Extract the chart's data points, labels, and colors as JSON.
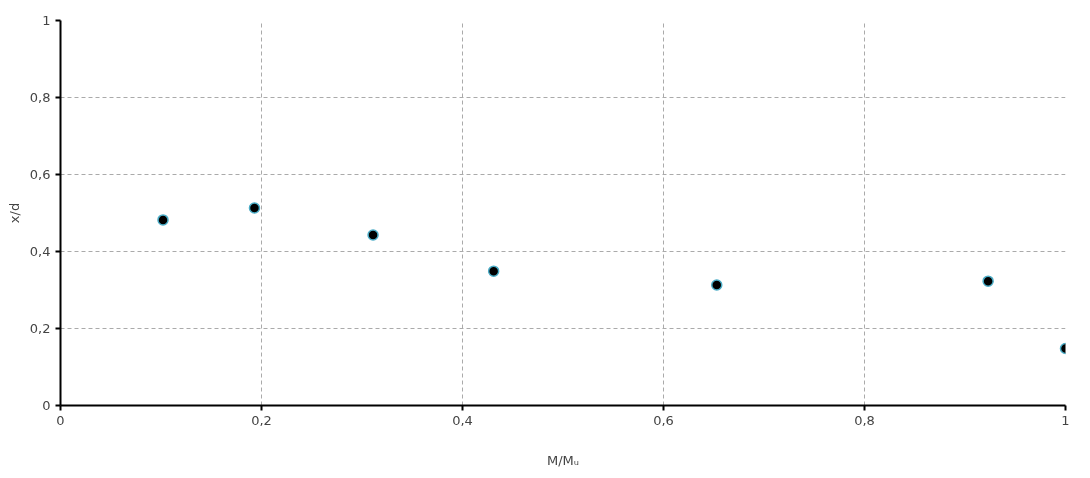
{
  "chart_data": {
    "type": "scatter",
    "xlabel": "M/Mᵤ",
    "ylabel": "x/d",
    "x": [
      0.102,
      0.193,
      0.311,
      0.431,
      0.653,
      0.923,
      1.0
    ],
    "series": [
      {
        "color": "#000000",
        "values": [
          0.482,
          0.513,
          0.443,
          0.349,
          0.313,
          0.323,
          0.148
        ]
      }
    ],
    "xlim": [
      0,
      1
    ],
    "ylim": [
      0,
      1
    ],
    "xticks": [
      0,
      {
        "value": 0.2,
        "label": "0,2"
      },
      {
        "value": 0.4,
        "label": "0,4"
      },
      {
        "value": 0.6,
        "label": "0,6"
      },
      {
        "value": 0.8,
        "label": "0,8"
      },
      1
    ],
    "yticks": [
      0,
      {
        "value": 0.2,
        "label": "0,2"
      },
      {
        "value": 0.4,
        "label": "0,4"
      },
      {
        "value": 0.6,
        "label": "0,6"
      },
      {
        "value": 0.8,
        "label": "0,8"
      },
      1
    ],
    "grid": true,
    "marker": "circle"
  }
}
